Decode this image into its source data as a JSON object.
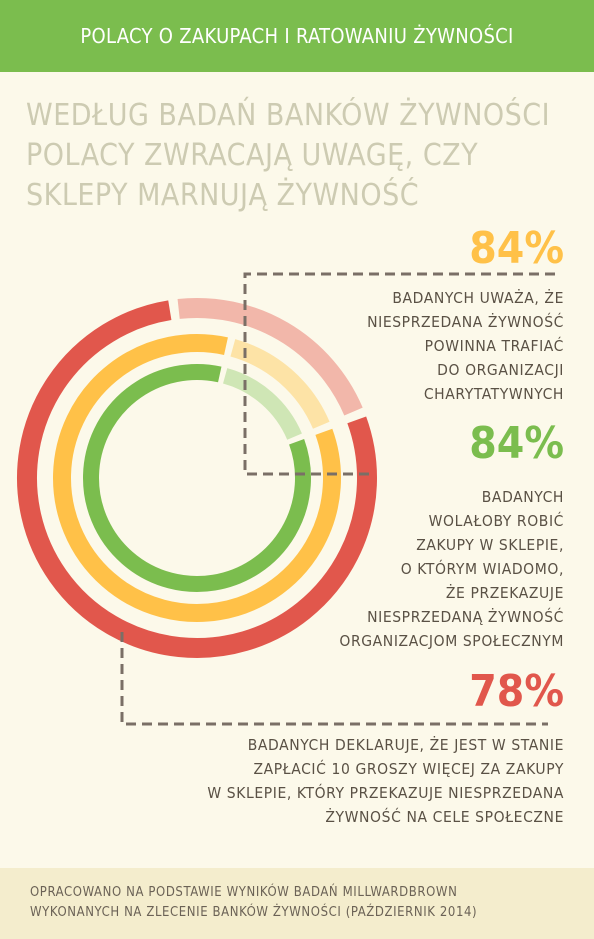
{
  "header": {
    "title": "POLACY O ZAKUPACH I RATOWANIU ŻYWNOŚCI"
  },
  "headline": {
    "lines": [
      "WEDŁUG BADAŃ BANKÓW ŻYWNOŚCI",
      "POLACY ZWRACAJĄ UWAGĘ, CZY",
      "SKLEPY MARNUJĄ ŻYWNOŚĆ"
    ]
  },
  "stats": [
    {
      "percent": "84%",
      "color": "#ffc148",
      "lines": [
        "BADANYCH UWAŻA, ŻE",
        "NIESPRZEDANA ŻYWNOŚĆ",
        "POWINNA TRAFIAĆ",
        "DO ORGANIZACJI",
        "CHARYTATYWNYCH"
      ]
    },
    {
      "percent": "84%",
      "color": "#7bbd4e",
      "lines": [
        "BADANYCH",
        "WOLAŁOBY ROBIĆ",
        "ZAKUPY W SKLEPIE,",
        "O KTÓRYM WIADOMO,",
        "ŻE PRZEKAZUJE",
        "NIESPRZEDANĄ ŻYWNOŚĆ",
        "ORGANIZACJOM SPOŁECZNYM"
      ]
    },
    {
      "percent": "78%",
      "color": "#e1574c",
      "lines": [
        "BADANYCH DEKLARUJE, ŻE JEST W STANIE",
        "ZAPŁACIĆ 10 GROSZY WIĘCEJ ZA ZAKUPY",
        "W SKLEPIE, KTÓRY PRZEKAZUJE NIESPRZEDANA",
        "ŻYWNOŚĆ NA CELE SPOŁECZNE"
      ]
    }
  ],
  "chart_data": {
    "type": "pie",
    "series": [
      {
        "name": "",
        "value": 78,
        "color": "#e1574c",
        "remainder_color": "#f2b7aa"
      },
      {
        "name": "",
        "value": 84,
        "color": "#ffc148",
        "remainder_color": "#fde3a6"
      },
      {
        "name": "",
        "value": 84,
        "color": "#7bbd4e",
        "remainder_color": "#cfe6b5"
      }
    ]
  },
  "footer": {
    "lines": [
      "OPRACOWANO NA PODSTAWIE WYNIKÓW BADAŃ MILLWARDBROWN",
      "WYKONANYCH NA ZLECENIE BANKÓW ŻYWNOŚCI (PAŹDZIERNIK 2014)"
    ]
  },
  "colors": {
    "divider": "#7a6f66"
  }
}
